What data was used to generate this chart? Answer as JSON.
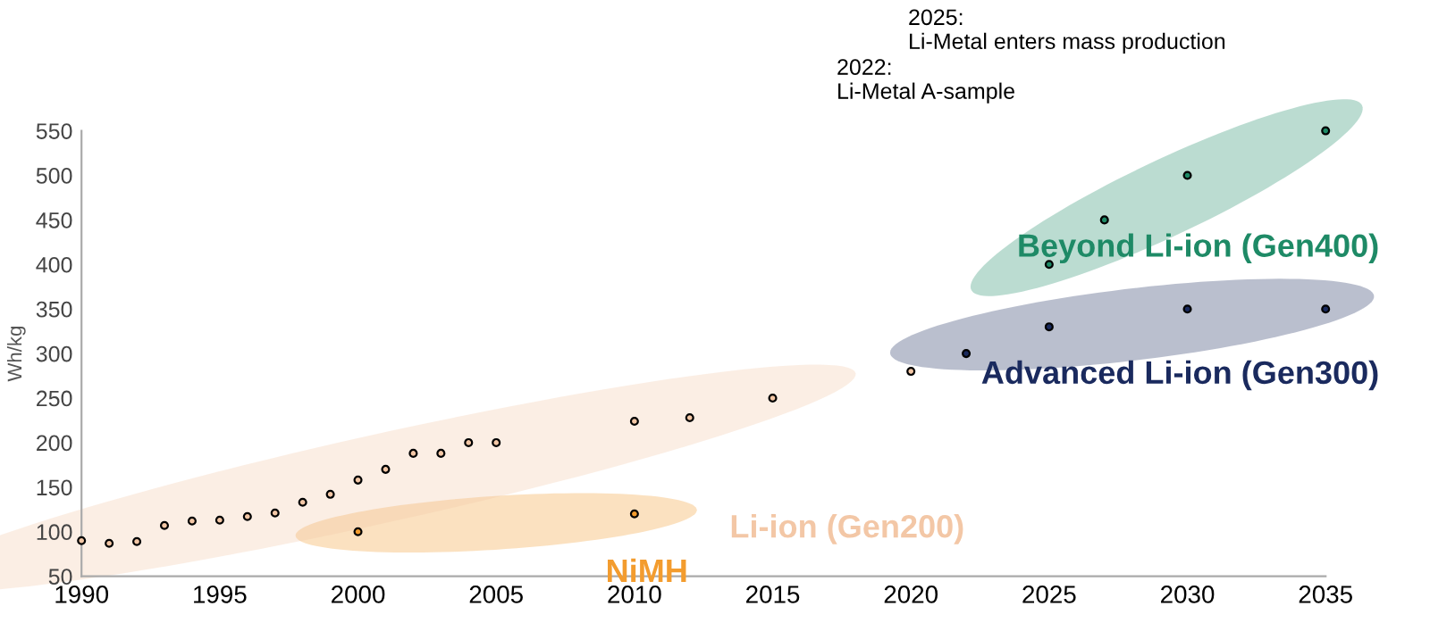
{
  "chart_data": {
    "type": "scatter",
    "ylabel": "Wh/kg",
    "xlim": [
      1990,
      2035
    ],
    "ylim": [
      50,
      550
    ],
    "xticks": [
      1990,
      1995,
      2000,
      2005,
      2010,
      2015,
      2020,
      2025,
      2030,
      2035
    ],
    "yticks": [
      50,
      100,
      150,
      200,
      250,
      300,
      350,
      400,
      450,
      500,
      550
    ],
    "grid": false,
    "legend": false,
    "marker": "circle",
    "series": [
      {
        "name": "NiMH",
        "color": "#f39c2e",
        "x": [
          2000,
          2010
        ],
        "values": [
          100,
          120
        ]
      },
      {
        "name": "Li-ion (Gen200)",
        "color": "#f3c7a6",
        "x": [
          1990,
          1991,
          1992,
          1993,
          1994,
          1995,
          1996,
          1997,
          1998,
          1999,
          2000,
          2001,
          2002,
          2003,
          2004,
          2005,
          2010,
          2012,
          2015,
          2020
        ],
        "values": [
          90,
          87,
          89,
          107,
          112,
          113,
          117,
          121,
          133,
          142,
          158,
          170,
          188,
          188,
          200,
          200,
          224,
          228,
          250,
          280
        ]
      },
      {
        "name": "Advanced Li-ion (Gen300)",
        "color": "#1a2a5e",
        "x": [
          2022,
          2025,
          2030,
          2035
        ],
        "values": [
          300,
          330,
          350,
          350
        ]
      },
      {
        "name": "Beyond Li-ion (Gen400)",
        "color": "#1e8a66",
        "x": [
          2025,
          2027,
          2030,
          2035
        ],
        "values": [
          400,
          450,
          500,
          550
        ]
      }
    ],
    "annotations": [
      "2022:\nLi-Metal A-sample",
      "2025:\nLi-Metal enters mass production"
    ]
  }
}
